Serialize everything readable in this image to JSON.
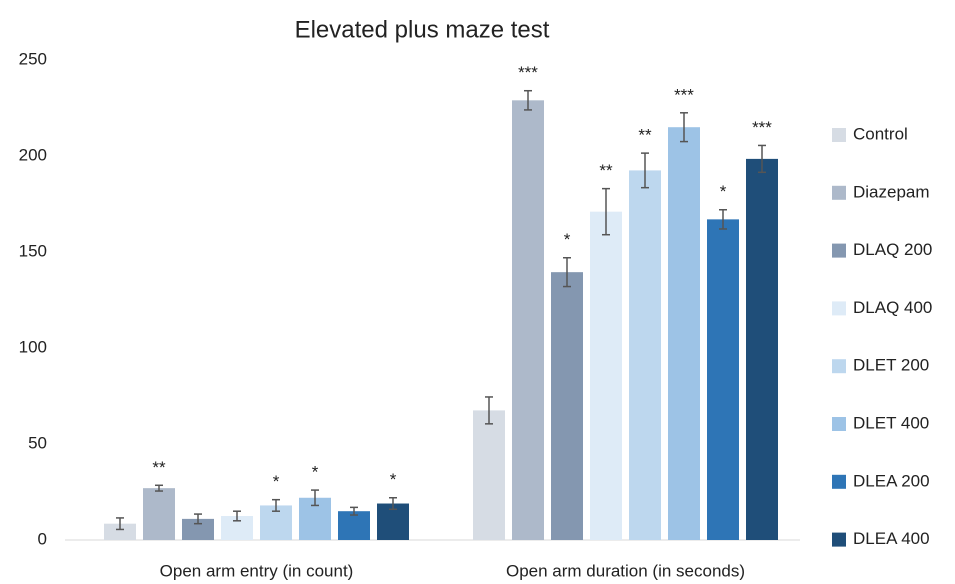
{
  "chart_data": {
    "type": "bar",
    "title": "Elevated plus maze test",
    "categories": [
      "Open arm entry (in count)",
      "Open arm duration (in seconds)"
    ],
    "ylim": [
      0,
      250
    ],
    "yticks": [
      0,
      50,
      100,
      150,
      200,
      250
    ],
    "grid": false,
    "legend": "right",
    "series": [
      {
        "name": "Control",
        "color": "#d6dce4",
        "values": [
          8.5,
          67.5
        ],
        "errors": [
          3,
          7
        ],
        "annotations": [
          null,
          null
        ]
      },
      {
        "name": "Diazepam",
        "color": "#adb9ca",
        "values": [
          27,
          229
        ],
        "errors": [
          1.5,
          5
        ],
        "annotations": [
          "**",
          "***"
        ]
      },
      {
        "name": "DLAQ 200",
        "color": "#8497b0",
        "values": [
          11,
          139.5
        ],
        "errors": [
          2.5,
          7.5
        ],
        "annotations": [
          null,
          "*"
        ]
      },
      {
        "name": "DLAQ 400",
        "color": "#deebf7",
        "values": [
          12.5,
          171
        ],
        "errors": [
          2.5,
          12
        ],
        "annotations": [
          null,
          "**"
        ]
      },
      {
        "name": "DLET 200",
        "color": "#bdd7ee",
        "values": [
          18,
          192.5
        ],
        "errors": [
          3,
          9
        ],
        "annotations": [
          "*",
          "**"
        ]
      },
      {
        "name": "DLET 400",
        "color": "#9dc3e6",
        "values": [
          22,
          215
        ],
        "errors": [
          4,
          7.5
        ],
        "annotations": [
          "*",
          "***"
        ]
      },
      {
        "name": "DLEA 200",
        "color": "#2e75b6",
        "values": [
          15,
          167
        ],
        "errors": [
          2,
          5
        ],
        "annotations": [
          null,
          "*"
        ]
      },
      {
        "name": "DLEA 400",
        "color": "#1f4e79",
        "values": [
          19,
          198.5
        ],
        "errors": [
          3,
          7
        ],
        "annotations": [
          "*",
          "***"
        ]
      }
    ]
  }
}
